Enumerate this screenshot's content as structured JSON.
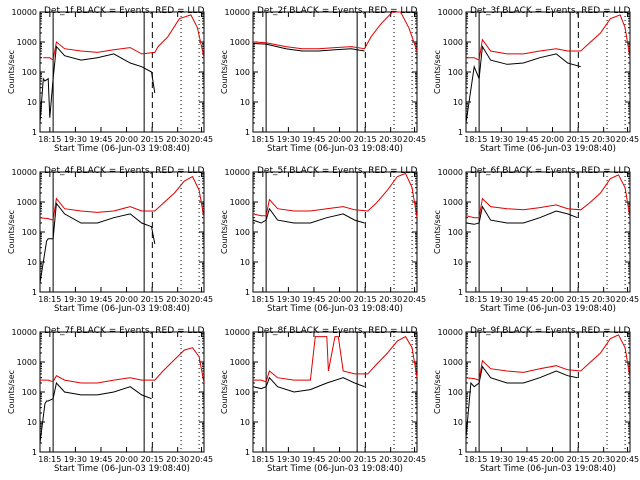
{
  "figure": {
    "xlabel": "Start Time (06-Jun-03 19:08:40)",
    "ylabel": "Counts/sec",
    "colors": {
      "events": "#000000",
      "lld": "#e00000"
    }
  },
  "chart_data": [
    {
      "type": "line",
      "title": "Det_1f BLACK = Events, RED = LLD",
      "xlabel": "Start Time (06-Jun-03 19:08:40)",
      "ylabel": "Counts/sec",
      "x_ticks": [
        "18:15",
        "19:30",
        "19:45",
        "20:00",
        "20:15",
        "20:30",
        "20:45"
      ],
      "y_ticks": [
        "1",
        "10",
        "100",
        "1000",
        "10000"
      ],
      "ylim": [
        1,
        10000
      ],
      "y_scale": "log",
      "series": [
        {
          "name": "Events",
          "color": "#000000",
          "x": [
            0,
            0.02,
            0.03,
            0.05,
            0.06,
            0.08,
            0.1,
            0.15,
            0.25,
            0.35,
            0.45,
            0.55,
            0.62,
            0.68,
            0.7
          ],
          "y": [
            2,
            60,
            50,
            60,
            3,
            60,
            700,
            350,
            250,
            300,
            400,
            200,
            150,
            100,
            20
          ]
        },
        {
          "name": "LLD",
          "color": "#e00000",
          "x": [
            0.02,
            0.06,
            0.08,
            0.1,
            0.15,
            0.25,
            0.35,
            0.45,
            0.55,
            0.62,
            0.7,
            0.72,
            0.78,
            0.85,
            0.92,
            0.96,
            1.0
          ],
          "y": [
            300,
            300,
            250,
            1000,
            600,
            500,
            450,
            550,
            650,
            400,
            450,
            700,
            1500,
            6000,
            8000,
            3000,
            300
          ]
        }
      ]
    },
    {
      "type": "line",
      "title": "Det_2f BLACK = Events, RED = LLD",
      "xlabel": "Start Time (06-Jun-03 19:08:40)",
      "ylabel": "Counts/sec",
      "x_ticks": [
        "18:15",
        "19:30",
        "19:45",
        "20:00",
        "20:15",
        "20:30",
        "20:45"
      ],
      "y_ticks": [
        "1",
        "10",
        "100",
        "1000",
        "10000"
      ],
      "ylim": [
        1,
        10000
      ],
      "y_scale": "log",
      "series": [
        {
          "name": "Events",
          "color": "#000000",
          "x": [
            0,
            0.08,
            0.1,
            0.2,
            0.3,
            0.4,
            0.5,
            0.6,
            0.68
          ],
          "y": [
            900,
            850,
            800,
            600,
            500,
            500,
            550,
            600,
            500
          ]
        },
        {
          "name": "LLD",
          "color": "#e00000",
          "x": [
            0,
            0.08,
            0.1,
            0.2,
            0.3,
            0.4,
            0.5,
            0.6,
            0.68,
            0.72,
            0.78,
            0.85,
            0.9,
            0.95,
            1.0
          ],
          "y": [
            1000,
            950,
            900,
            700,
            600,
            600,
            650,
            700,
            600,
            1500,
            4000,
            10000,
            10000,
            3000,
            500
          ]
        }
      ]
    },
    {
      "type": "line",
      "title": "Det_3f BLACK = Events, RED = LLD",
      "xlabel": "Start Time (06-Jun-03 19:08:40)",
      "ylabel": "Counts/sec",
      "x_ticks": [
        "18:15",
        "19:30",
        "19:45",
        "20:00",
        "20:15",
        "20:30",
        "20:45"
      ],
      "y_ticks": [
        "1",
        "10",
        "100",
        "1000",
        "10000"
      ],
      "ylim": [
        1,
        10000
      ],
      "y_scale": "log",
      "series": [
        {
          "name": "Events",
          "color": "#000000",
          "x": [
            0,
            0.05,
            0.08,
            0.1,
            0.15,
            0.25,
            0.35,
            0.45,
            0.55,
            0.62,
            0.7
          ],
          "y": [
            2,
            150,
            60,
            700,
            250,
            180,
            200,
            300,
            400,
            200,
            150
          ]
        },
        {
          "name": "LLD",
          "color": "#e00000",
          "x": [
            0,
            0.05,
            0.08,
            0.1,
            0.15,
            0.25,
            0.35,
            0.45,
            0.55,
            0.62,
            0.7,
            0.75,
            0.82,
            0.88,
            0.94,
            0.97,
            1.0
          ],
          "y": [
            300,
            300,
            250,
            1200,
            500,
            400,
            400,
            500,
            600,
            500,
            500,
            900,
            2000,
            6000,
            8000,
            3000,
            300
          ]
        }
      ]
    },
    {
      "type": "line",
      "title": "Det_4f BLACK = Events, RED = LLD",
      "xlabel": "Start Time (06-Jun-03 19:08:40)",
      "ylabel": "Counts/sec",
      "x_ticks": [
        "18:15",
        "19:30",
        "19:45",
        "20:00",
        "20:15",
        "20:30",
        "20:45"
      ],
      "y_ticks": [
        "1",
        "10",
        "100",
        "1000",
        "10000"
      ],
      "ylim": [
        1,
        10000
      ],
      "y_scale": "log",
      "series": [
        {
          "name": "Events",
          "color": "#000000",
          "x": [
            0,
            0.04,
            0.05,
            0.08,
            0.1,
            0.15,
            0.25,
            0.35,
            0.45,
            0.55,
            0.62,
            0.68,
            0.7
          ],
          "y": [
            2,
            50,
            60,
            60,
            900,
            400,
            200,
            200,
            300,
            400,
            200,
            150,
            40
          ]
        },
        {
          "name": "LLD",
          "color": "#e00000",
          "x": [
            0,
            0.05,
            0.08,
            0.1,
            0.15,
            0.25,
            0.35,
            0.45,
            0.55,
            0.62,
            0.7,
            0.75,
            0.82,
            0.88,
            0.93,
            0.97,
            1.0
          ],
          "y": [
            300,
            280,
            250,
            1300,
            600,
            500,
            450,
            500,
            700,
            500,
            500,
            900,
            2000,
            5000,
            7000,
            2500,
            300
          ]
        }
      ]
    },
    {
      "type": "line",
      "title": "Det_5f BLACK = Events, RED = LLD",
      "xlabel": "Start Time (06-Jun-03 19:08:40)",
      "ylabel": "Counts/sec",
      "x_ticks": [
        "18:15",
        "19:30",
        "19:45",
        "20:00",
        "20:15",
        "20:30",
        "20:45"
      ],
      "y_ticks": [
        "1",
        "10",
        "100",
        "1000",
        "10000"
      ],
      "ylim": [
        1,
        10000
      ],
      "y_scale": "log",
      "series": [
        {
          "name": "Events",
          "color": "#000000",
          "x": [
            0,
            0.05,
            0.08,
            0.1,
            0.15,
            0.25,
            0.35,
            0.45,
            0.55,
            0.62,
            0.68
          ],
          "y": [
            250,
            200,
            250,
            600,
            250,
            200,
            200,
            300,
            400,
            250,
            200
          ]
        },
        {
          "name": "LLD",
          "color": "#e00000",
          "x": [
            0,
            0.05,
            0.08,
            0.1,
            0.15,
            0.25,
            0.35,
            0.45,
            0.55,
            0.62,
            0.7,
            0.75,
            0.82,
            0.88,
            0.93,
            0.97,
            1.0
          ],
          "y": [
            400,
            350,
            350,
            1200,
            600,
            500,
            500,
            600,
            700,
            550,
            500,
            900,
            2500,
            7000,
            9000,
            3000,
            300
          ]
        }
      ]
    },
    {
      "type": "line",
      "title": "Det_6f BLACK = Events, RED = LLD",
      "xlabel": "Start Time (06-Jun-03 19:08:40)",
      "ylabel": "Counts/sec",
      "x_ticks": [
        "18:15",
        "19:30",
        "19:45",
        "20:00",
        "20:15",
        "20:30",
        "20:45"
      ],
      "y_ticks": [
        "1",
        "10",
        "100",
        "1000",
        "10000"
      ],
      "ylim": [
        1,
        10000
      ],
      "y_scale": "log",
      "series": [
        {
          "name": "Events",
          "color": "#000000",
          "x": [
            0,
            0.05,
            0.08,
            0.1,
            0.15,
            0.25,
            0.35,
            0.45,
            0.55,
            0.62,
            0.68
          ],
          "y": [
            200,
            180,
            200,
            700,
            250,
            200,
            200,
            300,
            500,
            400,
            300
          ]
        },
        {
          "name": "LLD",
          "color": "#e00000",
          "x": [
            0,
            0.05,
            0.08,
            0.1,
            0.15,
            0.25,
            0.35,
            0.45,
            0.55,
            0.62,
            0.7,
            0.75,
            0.82,
            0.88,
            0.93,
            0.97,
            1.0
          ],
          "y": [
            350,
            300,
            300,
            1300,
            700,
            600,
            550,
            650,
            800,
            600,
            550,
            900,
            2000,
            6000,
            8000,
            3000,
            300
          ]
        }
      ]
    },
    {
      "type": "line",
      "title": "Det_7f BLACK = Events, RED = LLD",
      "xlabel": "Start Time (06-Jun-03 19:08:40)",
      "ylabel": "Counts/sec",
      "x_ticks": [
        "18:15",
        "19:30",
        "19:45",
        "20:00",
        "20:15",
        "20:30",
        "20:45"
      ],
      "y_ticks": [
        "1",
        "10",
        "100",
        "1000",
        "10000"
      ],
      "ylim": [
        1,
        10000
      ],
      "y_scale": "log",
      "series": [
        {
          "name": "Events",
          "color": "#000000",
          "x": [
            0,
            0.03,
            0.04,
            0.05,
            0.08,
            0.1,
            0.15,
            0.25,
            0.35,
            0.45,
            0.55,
            0.62,
            0.68
          ],
          "y": [
            2,
            40,
            50,
            50,
            60,
            200,
            100,
            80,
            80,
            100,
            150,
            80,
            60
          ]
        },
        {
          "name": "LLD",
          "color": "#e00000",
          "x": [
            0,
            0.05,
            0.08,
            0.1,
            0.15,
            0.25,
            0.35,
            0.45,
            0.55,
            0.62,
            0.7,
            0.75,
            0.82,
            0.88,
            0.93,
            0.97,
            1.0
          ],
          "y": [
            250,
            250,
            220,
            350,
            250,
            200,
            200,
            250,
            300,
            250,
            250,
            500,
            1200,
            2500,
            3000,
            1500,
            200
          ]
        }
      ]
    },
    {
      "type": "line",
      "title": "Det_8f BLACK = Events, RED = LLD",
      "xlabel": "Start Time (06-Jun-03 19:08:40)",
      "ylabel": "Counts/sec",
      "x_ticks": [
        "18:15",
        "19:30",
        "19:45",
        "20:00",
        "20:15",
        "20:30",
        "20:45"
      ],
      "y_ticks": [
        "1",
        "10",
        "100",
        "1000",
        "10000"
      ],
      "ylim": [
        1,
        10000
      ],
      "y_scale": "log",
      "series": [
        {
          "name": "Events",
          "color": "#000000",
          "x": [
            0,
            0.05,
            0.08,
            0.1,
            0.15,
            0.25,
            0.35,
            0.45,
            0.55,
            0.62,
            0.68
          ],
          "y": [
            150,
            130,
            150,
            300,
            150,
            100,
            120,
            200,
            300,
            200,
            150
          ]
        },
        {
          "name": "LLD",
          "color": "#e00000",
          "x": [
            0,
            0.05,
            0.08,
            0.1,
            0.15,
            0.25,
            0.35,
            0.38,
            0.4,
            0.45,
            0.46,
            0.5,
            0.52,
            0.55,
            0.62,
            0.7,
            0.75,
            0.82,
            0.88,
            0.93,
            0.97,
            1.0
          ],
          "y": [
            250,
            250,
            220,
            500,
            300,
            250,
            250,
            7000,
            7000,
            7000,
            500,
            7000,
            7000,
            500,
            400,
            400,
            800,
            2000,
            5000,
            7000,
            3000,
            300
          ]
        }
      ]
    },
    {
      "type": "line",
      "title": "Det_9f BLACK = Events, RED = LLD",
      "xlabel": "Start Time (06-Jun-03 19:08:40)",
      "ylabel": "Counts/sec",
      "x_ticks": [
        "18:15",
        "19:30",
        "19:45",
        "20:00",
        "20:15",
        "20:30",
        "20:45"
      ],
      "y_ticks": [
        "1",
        "10",
        "100",
        "1000",
        "10000"
      ],
      "ylim": [
        1,
        10000
      ],
      "y_scale": "log",
      "series": [
        {
          "name": "Events",
          "color": "#000000",
          "x": [
            0,
            0.03,
            0.05,
            0.08,
            0.1,
            0.15,
            0.25,
            0.35,
            0.45,
            0.55,
            0.62,
            0.68
          ],
          "y": [
            3,
            200,
            150,
            200,
            700,
            300,
            200,
            200,
            300,
            500,
            350,
            300
          ]
        },
        {
          "name": "LLD",
          "color": "#e00000",
          "x": [
            0,
            0.05,
            0.08,
            0.1,
            0.15,
            0.25,
            0.35,
            0.45,
            0.55,
            0.62,
            0.7,
            0.75,
            0.82,
            0.88,
            0.93,
            0.97,
            1.0
          ],
          "y": [
            300,
            280,
            250,
            1100,
            600,
            500,
            450,
            600,
            750,
            550,
            500,
            900,
            2000,
            6000,
            8000,
            3000,
            300
          ]
        }
      ]
    }
  ]
}
